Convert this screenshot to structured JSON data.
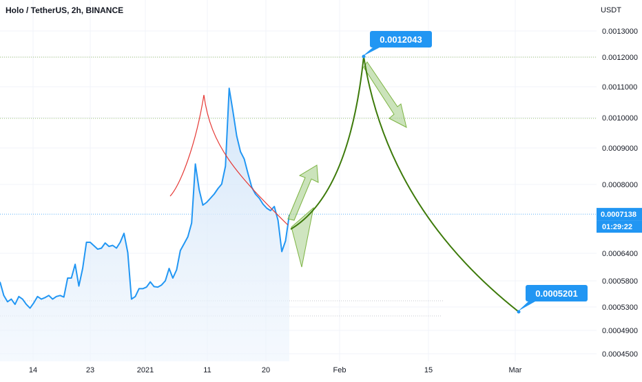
{
  "header": {
    "title": "Holo / TetherUS, 2h, BINANCE",
    "currency": "USDT"
  },
  "price_axis": {
    "labels": [
      "0.0013000",
      "0.0012000",
      "0.0011000",
      "0.0010000",
      "0.0009000",
      "0.0008000",
      "0.0006400",
      "0.0005800",
      "0.0005300",
      "0.0004900",
      "0.0004500"
    ]
  },
  "time_axis": {
    "labels": [
      "14",
      "23",
      "2021",
      "11",
      "20",
      "Feb",
      "15",
      "Mar"
    ]
  },
  "callouts": {
    "top_price": "0.0012043",
    "bottom_price": "0.0005201",
    "current_price": "0.0007138",
    "countdown": "01:29:22"
  },
  "colors": {
    "price_line": "#2196f3",
    "area_fill": "#e3effc",
    "resistance_curve": "#e53935",
    "projection_curve": "#3d7a0a",
    "arrow_fill": "#a8d08d",
    "label_bg": "#2196f3"
  },
  "chart_data": {
    "type": "line",
    "series": [
      {
        "values": [
          0.000578,
          0.000552,
          0.00054,
          0.000545,
          0.000535,
          0.00055,
          0.000545,
          0.000535,
          0.000528,
          0.000538,
          0.00055,
          0.000545,
          0.000548,
          0.000552,
          0.000545,
          0.00055,
          0.000552,
          0.000549,
          0.000582,
          0.000582,
          0.000592,
          0.00057,
          0.000589,
          0.000632,
          0.000632,
          0.000622,
          0.000612,
          0.000615,
          0.00063,
          0.00062,
          0.000623,
          0.000615,
          0.000632,
          0.000658,
          0.000602,
          0.000545,
          0.00055,
          0.000565,
          0.000565,
          0.000568,
          0.000578,
          0.000569,
          0.000568,
          0.000572,
          0.00058,
          0.000589,
          0.000582,
          0.000588,
          0.000608,
          0.000628,
          0.000648,
          0.000688,
          0.000856,
          0.000785,
          0.00074,
          0.000748,
          0.00076,
          0.000772,
          0.000788,
          0.000801,
          0.00085,
          0.001095,
          0.00102,
          0.00094,
          0.00089,
          0.00087,
          0.00083,
          0.000792,
          0.000772,
          0.00076,
          0.000743,
          0.000731,
          0.000724,
          0.000736,
          0.000696,
          0.000605,
          0.000636,
          0.000712
        ]
      }
    ],
    "annotations": [
      {
        "label": "0.0012043",
        "y": 0.0012043
      },
      {
        "label": "0.0005201",
        "y": 0.0005201
      },
      {
        "label": "0.0007138",
        "y": 0.0007138
      }
    ],
    "ylim": [
      0.00045,
      0.0013
    ]
  }
}
